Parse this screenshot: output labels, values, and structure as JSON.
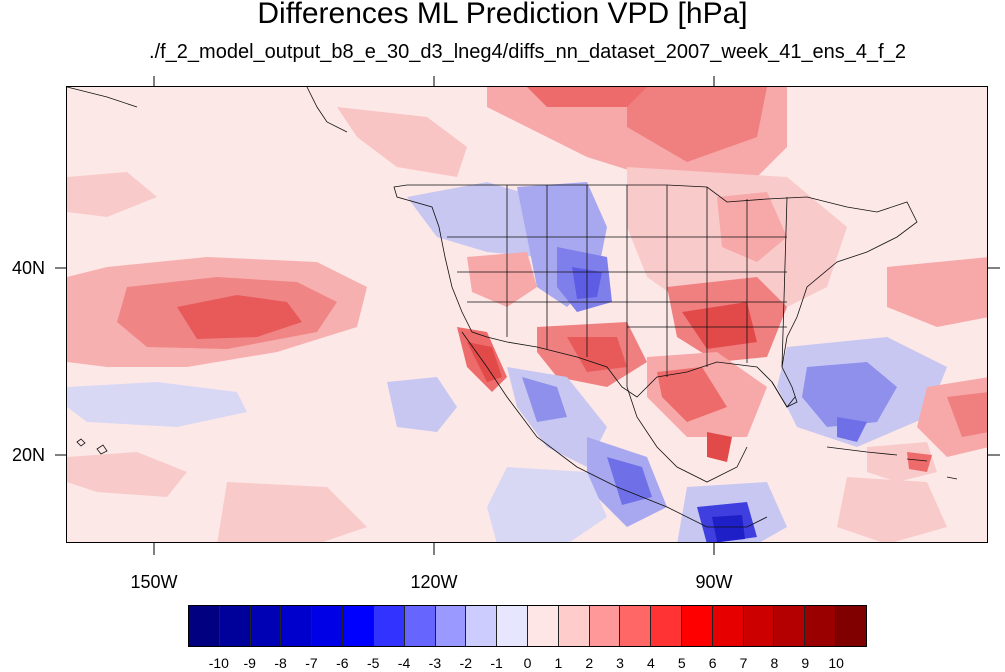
{
  "title": "Differences ML Prediction VPD [hPa]",
  "subtitle": "./f_2_model_output_b8_e_30_d3_lneg4/diffs_nn_dataset_2007_week_41_ens_4_f_2",
  "map": {
    "lat_labels": [
      "40N",
      "20N"
    ],
    "lon_labels": [
      "150W",
      "120W",
      "90W"
    ]
  },
  "colorbar": {
    "labels": [
      "-10",
      "-9",
      "-8",
      "-7",
      "-6",
      "-5",
      "-4",
      "-3",
      "-2",
      "-1",
      "0",
      "1",
      "2",
      "3",
      "4",
      "5",
      "6",
      "7",
      "8",
      "9",
      "10"
    ],
    "colors": [
      "#000080",
      "#00009a",
      "#0000b4",
      "#0000cd",
      "#0000e6",
      "#0000ff",
      "#3333ff",
      "#6666ff",
      "#9999ff",
      "#ccccff",
      "#e6e6ff",
      "#ffe6e6",
      "#ffcccc",
      "#ff9999",
      "#ff6666",
      "#ff3333",
      "#ff0000",
      "#e60000",
      "#cd0000",
      "#b40000",
      "#9a0000",
      "#800000"
    ]
  }
}
